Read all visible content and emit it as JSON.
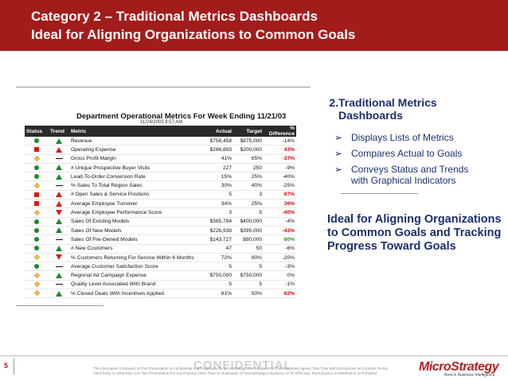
{
  "header": {
    "title_line1": "Category 2 – Traditional Metrics Dashboards",
    "title_line2": "Ideal for Aligning Organizations to Common Goals"
  },
  "dashboard": {
    "title": "Department Operational Metrics For Week Ending 11/21/03",
    "date": "11/24/2003 8:57 AM",
    "columns": [
      "Status",
      "Trend",
      "Metric",
      "Actual",
      "Target",
      "% Difference"
    ],
    "rows": [
      {
        "status": "circle",
        "trend": "up",
        "metric": "Revenue",
        "actual": "$756,458",
        "target": "$875,000",
        "diff": "-14%",
        "diff_style": "normal"
      },
      {
        "status": "square",
        "trend": "up-red",
        "metric": "Operating Expense",
        "actual": "$286,893",
        "target": "$200,000",
        "diff": "43%",
        "diff_style": "bad"
      },
      {
        "status": "diamond",
        "trend": "flat",
        "metric": "Gross Profit Margin",
        "actual": "41%",
        "target": "65%",
        "diff": "-37%",
        "diff_style": "bad"
      },
      {
        "status": "circle",
        "trend": "up",
        "metric": "# Unique Prospective Buyer Visits",
        "actual": "227",
        "target": "250",
        "diff": "-9%",
        "diff_style": "normal"
      },
      {
        "status": "circle",
        "trend": "up",
        "metric": "Lead-To-Order Conversion Rate",
        "actual": "15%",
        "target": "25%",
        "diff": "-40%",
        "diff_style": "normal"
      },
      {
        "status": "diamond",
        "trend": "flat",
        "metric": "% Sales To Total Region Sales",
        "actual": "30%",
        "target": "40%",
        "diff": "-25%",
        "diff_style": "normal"
      },
      {
        "status": "square",
        "trend": "up-red",
        "metric": "# Open Sales & Service Positions",
        "actual": "5",
        "target": "3",
        "diff": "67%",
        "diff_style": "bad"
      },
      {
        "status": "square",
        "trend": "up-red",
        "metric": "Average Employee Turnover",
        "actual": "34%",
        "target": "25%",
        "diff": "36%",
        "diff_style": "bad"
      },
      {
        "status": "diamond",
        "trend": "down",
        "metric": "Average Employee Performance Score",
        "actual": "3",
        "target": "5",
        "diff": "-40%",
        "diff_style": "bad"
      },
      {
        "status": "circle",
        "trend": "up",
        "metric": "Sales Of Existing Models",
        "actual": "$385,794",
        "target": "$400,000",
        "diff": "-4%",
        "diff_style": "normal"
      },
      {
        "status": "circle",
        "trend": "up",
        "metric": "Sales Of New Models",
        "actual": "$226,938",
        "target": "$395,000",
        "diff": "-43%",
        "diff_style": "bad"
      },
      {
        "status": "circle",
        "trend": "flat",
        "metric": "Sales Of Pre-Owned Models",
        "actual": "$143,727",
        "target": "$80,000",
        "diff": "80%",
        "diff_style": "good"
      },
      {
        "status": "circle",
        "trend": "up",
        "metric": "# New Customers",
        "actual": "47",
        "target": "50",
        "diff": "-6%",
        "diff_style": "normal"
      },
      {
        "status": "diamond",
        "trend": "down",
        "metric": "% Customers Returning For Service Within 6 Months",
        "actual": "72%",
        "target": "90%",
        "diff": "-20%",
        "diff_style": "normal"
      },
      {
        "status": "circle",
        "trend": "flat",
        "metric": "Average Customer Satisfaction Score",
        "actual": "5",
        "target": "5",
        "diff": "-3%",
        "diff_style": "normal"
      },
      {
        "status": "diamond",
        "trend": "up",
        "metric": "Regional Ad Campaign Expense",
        "actual": "$750,000",
        "target": "$750,000",
        "diff": "0%",
        "diff_style": "normal"
      },
      {
        "status": "diamond",
        "trend": "flat",
        "metric": "Quality Level Associated With Brand",
        "actual": "5",
        "target": "5",
        "diff": "-1%",
        "diff_style": "normal"
      },
      {
        "status": "diamond",
        "trend": "up",
        "metric": "% Closed Deals With Incentives Applied",
        "actual": "81%",
        "target": "50%",
        "diff": "62%",
        "diff_style": "bad"
      }
    ]
  },
  "right_panel": {
    "number": "2.",
    "heading_line1": "Traditional Metrics",
    "heading_line2": "Dashboards",
    "bullet_symbol": "➢",
    "bullets": [
      "Displays Lists of Metrics",
      "Compares Actual to Goals",
      "Conveys Status and Trends with Graphical Indicators"
    ],
    "ideal_text": "Ideal for Aligning Organizations to Common Goals and Tracking Progress Toward Goals"
  },
  "footer": {
    "page_number": "5",
    "confidential": "CONFIDENTIAL",
    "legal_text": "The Information Contained In This Presentation Is Confidential And Proprietary To MicroStrategy. The Recipient Of This Document Agrees That They Will Not Disclose Its Contents To Any Third Party Or Otherwise Use This Presentation For Any Purpose Other Than An Evaluation Of MicroStrategy's Business Or Its Offerings. Reproduction or Distribution Is Prohibited.",
    "logo_text": "MicroStrategy",
    "tagline": "Best in Business Intelligence"
  },
  "colors": {
    "header_red": "#a31c1c",
    "heading_blue": "#1a2f6e",
    "status_green": "#1b8a2a",
    "status_red": "#d81b1b",
    "status_yellow": "#f5c86a"
  }
}
